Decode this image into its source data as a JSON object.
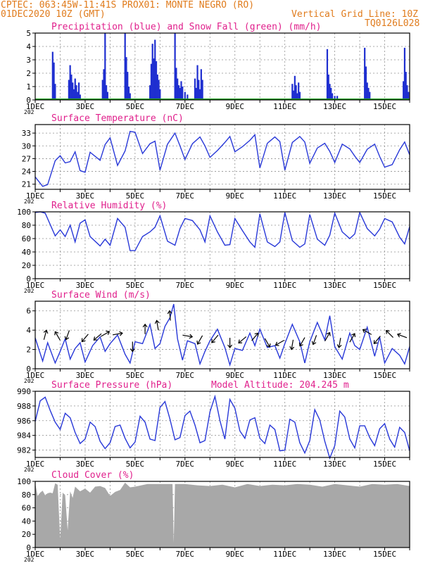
{
  "header": {
    "line1": "CPTEC:   063:45W-11:41S   PROX01: MONTE NEGRO (RO)",
    "line2_left": "01DEC2020 10Z (GMT)",
    "line2_right": "Vertical Grid Line: 10Z",
    "line3_right": "TQ0126L028"
  },
  "colors": {
    "header_text": "#e07b1c",
    "panel_title": "#e0208c",
    "series_line": "#2838d8",
    "precip_bar": "#1f2fd0",
    "snow_line": "#1fa01f",
    "cloud_fill": "#a8a8a8",
    "arrow": "#000000",
    "grid": "#909090"
  },
  "x_axis": {
    "labels": [
      "1DEC",
      "3DEC",
      "5DEC",
      "7DEC",
      "9DEC",
      "11DEC",
      "13DEC",
      "15DEC"
    ],
    "range_days": [
      1,
      16
    ],
    "year_fragment": "202"
  },
  "chart_data": [
    {
      "id": "precip",
      "type": "bar",
      "title": "Precipitation (blue) and Snow Fall (green) (mm/h)",
      "ylim": [
        0,
        5
      ],
      "yticks": [
        "0",
        "1",
        "2",
        "3",
        "4",
        "5"
      ],
      "x": [
        1.7,
        1.75,
        1.8,
        2.35,
        2.4,
        2.45,
        2.5,
        2.55,
        2.6,
        2.65,
        2.7,
        2.75,
        2.8,
        3.7,
        3.75,
        3.8,
        3.85,
        3.9,
        4.6,
        4.65,
        4.7,
        4.75,
        4.8,
        5.6,
        5.65,
        5.7,
        5.75,
        5.8,
        5.85,
        5.9,
        5.95,
        6.0,
        6.6,
        6.65,
        6.7,
        6.75,
        6.8,
        6.85,
        6.9,
        7.0,
        7.1,
        7.4,
        7.45,
        7.5,
        7.55,
        7.6,
        7.65,
        7.7,
        11.3,
        11.35,
        11.4,
        11.45,
        11.5,
        11.55,
        11.6,
        12.7,
        12.75,
        12.8,
        12.85,
        12.9,
        13.0,
        13.1,
        14.2,
        14.25,
        14.3,
        14.35,
        14.4,
        15.75,
        15.8,
        15.85,
        15.9,
        15.95
      ],
      "values": [
        3.6,
        2.8,
        1.2,
        1.5,
        2.6,
        1.9,
        1.3,
        0.8,
        1.6,
        1.1,
        0.6,
        1.3,
        0.4,
        1.5,
        2.3,
        5.0,
        1.1,
        0.6,
        5.0,
        3.2,
        2.1,
        1.0,
        0.5,
        1.1,
        2.7,
        4.2,
        3.1,
        4.5,
        2.9,
        1.9,
        1.5,
        0.8,
        5.0,
        2.4,
        1.6,
        1.1,
        0.9,
        1.4,
        1.0,
        0.6,
        0.4,
        1.6,
        0.9,
        2.6,
        1.5,
        0.8,
        2.3,
        1.5,
        1.2,
        0.7,
        1.8,
        1.1,
        0.5,
        1.3,
        0.6,
        3.8,
        1.9,
        1.2,
        0.9,
        0.5,
        0.3,
        0.3,
        3.9,
        2.5,
        1.3,
        0.9,
        0.6,
        1.4,
        3.9,
        2.1,
        1.1,
        0.6
      ],
      "snow_values": [
        0,
        0
      ]
    },
    {
      "id": "temp",
      "type": "line",
      "title": "Surface Temperature (nC)",
      "ylim": [
        19.8,
        35
      ],
      "yticks": [
        "21",
        "24",
        "27",
        "30",
        "33"
      ],
      "x": [
        1.0,
        1.3,
        1.5,
        1.8,
        2.0,
        2.2,
        2.4,
        2.6,
        2.8,
        3.0,
        3.2,
        3.6,
        3.8,
        4.0,
        4.3,
        4.6,
        4.8,
        5.0,
        5.3,
        5.6,
        5.8,
        6.0,
        6.3,
        6.6,
        6.8,
        7.0,
        7.3,
        7.6,
        7.8,
        8.0,
        8.3,
        8.6,
        8.8,
        9.0,
        9.3,
        9.6,
        9.8,
        10.0,
        10.3,
        10.6,
        10.8,
        11.0,
        11.3,
        11.6,
        11.8,
        12.0,
        12.3,
        12.6,
        12.8,
        13.0,
        13.3,
        13.6,
        13.8,
        14.0,
        14.3,
        14.6,
        14.8,
        15.0,
        15.3,
        15.6,
        15.8,
        16.0
      ],
      "values": [
        22.7,
        20.5,
        20.9,
        26.5,
        27.7,
        26.0,
        26.3,
        28.6,
        24.2,
        23.8,
        28.5,
        26.6,
        30.3,
        31.9,
        25.4,
        28.8,
        33.4,
        33.2,
        28.2,
        30.5,
        31.1,
        24.3,
        30.4,
        33.0,
        30.0,
        26.8,
        30.5,
        32.1,
        30.0,
        27.3,
        28.9,
        30.8,
        32.2,
        28.6,
        29.8,
        31.3,
        32.6,
        24.8,
        30.6,
        32.1,
        31.0,
        24.3,
        30.8,
        32.2,
        30.9,
        25.9,
        29.5,
        30.6,
        28.7,
        26.1,
        30.4,
        29.3,
        27.6,
        26.1,
        29.2,
        30.4,
        27.5,
        25.0,
        25.6,
        29.1,
        30.9,
        27.9
      ]
    },
    {
      "id": "rh",
      "type": "line",
      "title": "Relative Humidity (%)",
      "ylim": [
        0,
        100
      ],
      "yticks": [
        "0",
        "20",
        "40",
        "60",
        "80",
        "100"
      ],
      "x": [
        1.0,
        1.2,
        1.4,
        1.8,
        2.0,
        2.2,
        2.4,
        2.6,
        2.8,
        3.0,
        3.2,
        3.6,
        3.8,
        4.0,
        4.3,
        4.6,
        4.8,
        5.0,
        5.3,
        5.6,
        5.8,
        6.0,
        6.3,
        6.6,
        6.8,
        7.0,
        7.3,
        7.6,
        7.8,
        8.0,
        8.3,
        8.6,
        8.8,
        9.0,
        9.3,
        9.6,
        9.8,
        10.0,
        10.3,
        10.6,
        10.8,
        11.0,
        11.3,
        11.6,
        11.8,
        12.0,
        12.3,
        12.6,
        12.8,
        13.0,
        13.3,
        13.6,
        13.8,
        14.0,
        14.3,
        14.6,
        14.8,
        15.0,
        15.3,
        15.6,
        15.8,
        16.0
      ],
      "values": [
        99,
        100,
        98,
        64,
        73,
        63,
        80,
        55,
        83,
        88,
        63,
        49,
        59,
        50,
        90,
        77,
        42,
        42,
        63,
        70,
        77,
        94,
        56,
        50,
        75,
        90,
        87,
        73,
        55,
        94,
        70,
        50,
        51,
        90,
        72,
        55,
        47,
        97,
        55,
        48,
        55,
        99,
        57,
        47,
        52,
        96,
        59,
        50,
        65,
        98,
        70,
        60,
        67,
        99,
        75,
        64,
        74,
        90,
        85,
        62,
        52,
        78
      ]
    },
    {
      "id": "wind",
      "type": "line",
      "title": "Surface Wind (m/s)",
      "ylim": [
        0,
        7
      ],
      "yticks": [
        "0",
        "2",
        "4",
        "6"
      ],
      "x": [
        1.0,
        1.3,
        1.5,
        1.8,
        2.0,
        2.2,
        2.4,
        2.6,
        2.8,
        3.0,
        3.3,
        3.6,
        3.8,
        4.0,
        4.3,
        4.6,
        4.8,
        5.0,
        5.3,
        5.6,
        5.8,
        6.0,
        6.2,
        6.4,
        6.55,
        6.7,
        6.9,
        7.1,
        7.4,
        7.6,
        7.8,
        8.0,
        8.3,
        8.6,
        8.8,
        9.0,
        9.3,
        9.6,
        9.8,
        10.0,
        10.3,
        10.6,
        10.8,
        11.0,
        11.3,
        11.6,
        11.8,
        12.0,
        12.3,
        12.6,
        12.8,
        13.0,
        13.3,
        13.6,
        13.8,
        14.0,
        14.3,
        14.6,
        14.8,
        15.0,
        15.3,
        15.6,
        15.8,
        16.0
      ],
      "values": [
        3.2,
        0.8,
        2.7,
        0.6,
        1.8,
        3.1,
        1.0,
        2.1,
        2.7,
        0.7,
        2.4,
        3.3,
        1.8,
        2.6,
        3.5,
        1.5,
        0.6,
        2.8,
        2.6,
        4.6,
        2.1,
        2.6,
        4.4,
        5.3,
        6.7,
        3.1,
        0.9,
        2.9,
        2.6,
        0.5,
        1.8,
        2.9,
        4.1,
        2.2,
        0.4,
        2.1,
        1.9,
        3.7,
        2.4,
        4.1,
        2.2,
        2.4,
        1.1,
        2.6,
        4.6,
        2.8,
        0.6,
        2.8,
        4.8,
        3.0,
        5.5,
        2.3,
        1.0,
        3.7,
        2.4,
        2.0,
        4.3,
        1.3,
        3.3,
        0.6,
        2.1,
        1.4,
        0.5,
        2.3
      ],
      "arrows": [
        {
          "x": 1.4,
          "y": 3.5,
          "angle": 15
        },
        {
          "x": 1.9,
          "y": 3.4,
          "angle": -30
        },
        {
          "x": 2.3,
          "y": 3.5,
          "angle": 200
        },
        {
          "x": 3.0,
          "y": 3.2,
          "angle": 220
        },
        {
          "x": 3.5,
          "y": 3.3,
          "angle": 230
        },
        {
          "x": 3.8,
          "y": 3.6,
          "angle": 60
        },
        {
          "x": 4.3,
          "y": 3.6,
          "angle": 80
        },
        {
          "x": 4.9,
          "y": 2.3,
          "angle": 180
        },
        {
          "x": 5.4,
          "y": 4.1,
          "angle": 0
        },
        {
          "x": 5.9,
          "y": 4.5,
          "angle": -10
        },
        {
          "x": 6.4,
          "y": 5.5,
          "angle": -5
        },
        {
          "x": 7.1,
          "y": 3.4,
          "angle": 100
        },
        {
          "x": 7.6,
          "y": 3.0,
          "angle": 210
        },
        {
          "x": 8.2,
          "y": 3.1,
          "angle": 220
        },
        {
          "x": 8.8,
          "y": 2.7,
          "angle": 180
        },
        {
          "x": 9.3,
          "y": 3.0,
          "angle": 230
        },
        {
          "x": 9.8,
          "y": 3.3,
          "angle": 40
        },
        {
          "x": 10.3,
          "y": 2.7,
          "angle": 150
        },
        {
          "x": 10.8,
          "y": 2.7,
          "angle": 240
        },
        {
          "x": 11.3,
          "y": 2.5,
          "angle": 190
        },
        {
          "x": 11.7,
          "y": 2.8,
          "angle": 210
        },
        {
          "x": 12.2,
          "y": 3.0,
          "angle": 200
        },
        {
          "x": 12.7,
          "y": 3.3,
          "angle": 30
        },
        {
          "x": 13.2,
          "y": 2.7,
          "angle": 190
        },
        {
          "x": 13.7,
          "y": 3.2,
          "angle": 30
        },
        {
          "x": 14.3,
          "y": 3.8,
          "angle": -60
        },
        {
          "x": 14.7,
          "y": 3.0,
          "angle": 220
        },
        {
          "x": 15.2,
          "y": 3.6,
          "angle": -45
        },
        {
          "x": 15.7,
          "y": 3.4,
          "angle": -70
        }
      ]
    },
    {
      "id": "pressure",
      "type": "line",
      "title": "Surface Pressure (hPa)",
      "annotation": "Model Altitude: 204.245 m",
      "ylim": [
        981,
        990
      ],
      "yticks": [
        "982",
        "984",
        "986",
        "988",
        "990"
      ],
      "x": [
        1.0,
        1.2,
        1.4,
        1.6,
        1.8,
        2.0,
        2.2,
        2.4,
        2.6,
        2.8,
        3.0,
        3.2,
        3.4,
        3.6,
        3.8,
        4.0,
        4.2,
        4.4,
        4.6,
        4.8,
        5.0,
        5.2,
        5.4,
        5.6,
        5.8,
        6.0,
        6.2,
        6.4,
        6.6,
        6.8,
        7.0,
        7.2,
        7.4,
        7.6,
        7.8,
        8.0,
        8.2,
        8.4,
        8.6,
        8.8,
        9.0,
        9.2,
        9.4,
        9.6,
        9.8,
        10.0,
        10.2,
        10.4,
        10.6,
        10.8,
        11.0,
        11.2,
        11.4,
        11.6,
        11.8,
        12.0,
        12.2,
        12.4,
        12.6,
        12.8,
        13.0,
        13.2,
        13.4,
        13.6,
        13.8,
        14.0,
        14.2,
        14.4,
        14.6,
        14.8,
        15.0,
        15.2,
        15.4,
        15.6,
        15.8,
        16.0
      ],
      "values": [
        985.9,
        988.7,
        989.2,
        987.4,
        985.8,
        984.8,
        987.0,
        986.4,
        984.4,
        982.9,
        983.5,
        985.8,
        985.2,
        983.2,
        982.2,
        983.0,
        985.2,
        985.4,
        983.6,
        982.3,
        983.1,
        986.6,
        985.8,
        983.5,
        983.3,
        987.8,
        988.6,
        986.2,
        983.4,
        983.7,
        986.7,
        987.3,
        985.4,
        983.0,
        983.3,
        987.2,
        989.3,
        986.0,
        983.5,
        988.9,
        987.7,
        984.6,
        983.6,
        986.1,
        986.4,
        983.6,
        982.9,
        985.4,
        984.8,
        981.9,
        982.0,
        986.2,
        985.8,
        983.0,
        981.6,
        983.3,
        987.5,
        986.1,
        983.2,
        980.9,
        982.6,
        987.3,
        986.5,
        983.5,
        982.3,
        985.3,
        985.3,
        983.7,
        982.6,
        984.9,
        985.6,
        983.5,
        982.4,
        985.1,
        984.4,
        981.9
      ]
    },
    {
      "id": "cloud",
      "type": "area",
      "title": "Cloud Cover (%)",
      "ylim": [
        0,
        100
      ],
      "yticks": [
        "0",
        "20",
        "40",
        "60",
        "80",
        "100"
      ],
      "x": [
        1.0,
        1.1,
        1.2,
        1.3,
        1.4,
        1.5,
        1.6,
        1.7,
        1.8,
        1.9,
        2.0,
        2.1,
        2.2,
        2.3,
        2.4,
        2.5,
        2.6,
        2.8,
        3.0,
        3.2,
        3.4,
        3.6,
        3.8,
        4.0,
        4.2,
        4.4,
        4.6,
        4.8,
        5.0,
        5.5,
        6.0,
        6.5,
        6.55,
        6.6,
        7.0,
        7.5,
        8.0,
        8.5,
        9.0,
        9.5,
        10.0,
        10.5,
        11.0,
        11.5,
        12.0,
        12.5,
        13.0,
        13.5,
        14.0,
        14.5,
        15.0,
        15.5,
        16.0
      ],
      "values": [
        97,
        78,
        83,
        86,
        79,
        82,
        83,
        82,
        97,
        95,
        12,
        83,
        79,
        26,
        85,
        75,
        92,
        85,
        89,
        83,
        92,
        93,
        90,
        78,
        84,
        87,
        98,
        91,
        92,
        96,
        96,
        96,
        7,
        96,
        96,
        94,
        93,
        95,
        91,
        96,
        93,
        95,
        94,
        96,
        95,
        92,
        96,
        94,
        92,
        96,
        95,
        96,
        93
      ]
    }
  ]
}
